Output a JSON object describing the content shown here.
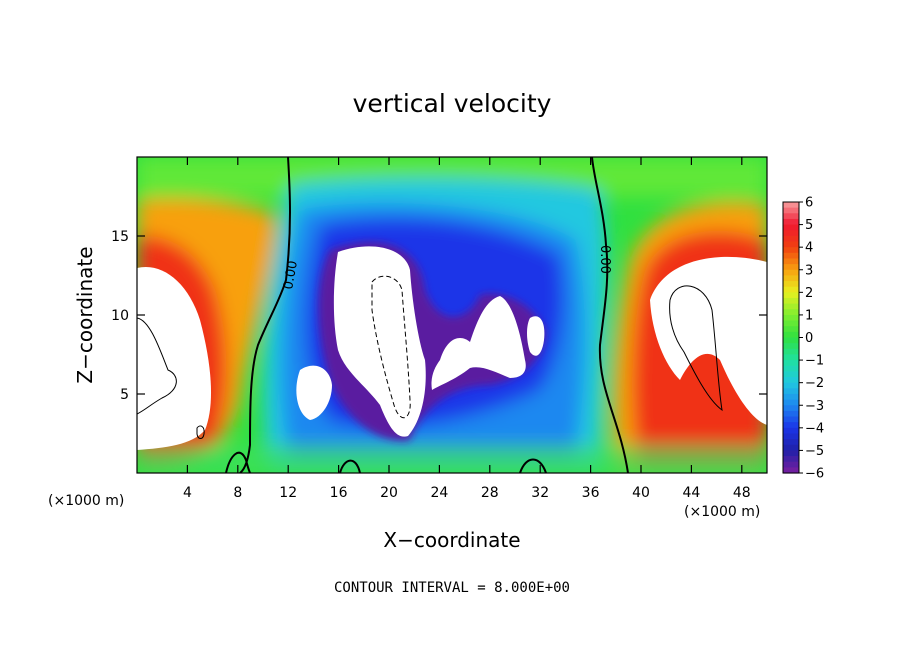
{
  "chart_data": {
    "type": "heatmap",
    "title": "vertical velocity",
    "xlabel": "X−coordinate",
    "ylabel": "Z−coordinate",
    "x_unit_left": "(×1000 m)",
    "x_unit_right": "(×1000 m)",
    "footnote": "CONTOUR INTERVAL = 8.000E+00",
    "xlim": [
      0,
      50
    ],
    "ylim": [
      0,
      20
    ],
    "xticks": [
      4,
      8,
      12,
      16,
      20,
      24,
      28,
      32,
      36,
      40,
      44,
      48
    ],
    "yticks": [
      5,
      10,
      15
    ],
    "colorbar": {
      "ticks": [
        "6",
        "5",
        "4",
        "3",
        "2",
        "1",
        "0",
        "−1",
        "−2",
        "−3",
        "−4",
        "−5",
        "−6"
      ],
      "range": [
        -6,
        6
      ],
      "colors": {
        "-6": "#7a1fa0",
        "-5": "#2020a8",
        "-4": "#1a34e8",
        "-3": "#1e88f0",
        "-2": "#20c8e0",
        "-1": "#20e0a0",
        "0": "#30e040",
        "1": "#80ee30",
        "2": "#e8f020",
        "3": "#f8a010",
        "4": "#f04010",
        "5": "#f01830",
        "6": "#f8a0a0"
      }
    },
    "contour_labels": [
      {
        "text": "0.00",
        "x": 9.5,
        "y": 12.6
      },
      {
        "text": "0.00",
        "x": 37.5,
        "y": 13.1
      }
    ],
    "features": [
      {
        "kind": "saturated-high",
        "x": [
          0,
          5
        ],
        "z": [
          4,
          13
        ],
        "value": 6
      },
      {
        "kind": "saturated-high",
        "x": [
          41,
          50
        ],
        "z": [
          6,
          12
        ],
        "value": 6
      },
      {
        "kind": "saturated-low",
        "x": [
          16,
          22
        ],
        "z": [
          2,
          14
        ],
        "value": -6
      },
      {
        "kind": "saturated-low",
        "x": [
          23,
          32
        ],
        "z": [
          6,
          11
        ],
        "value": -6
      },
      {
        "kind": "saturated-low",
        "x": [
          12,
          14
        ],
        "z": [
          4,
          7
        ],
        "value": -6
      }
    ]
  }
}
